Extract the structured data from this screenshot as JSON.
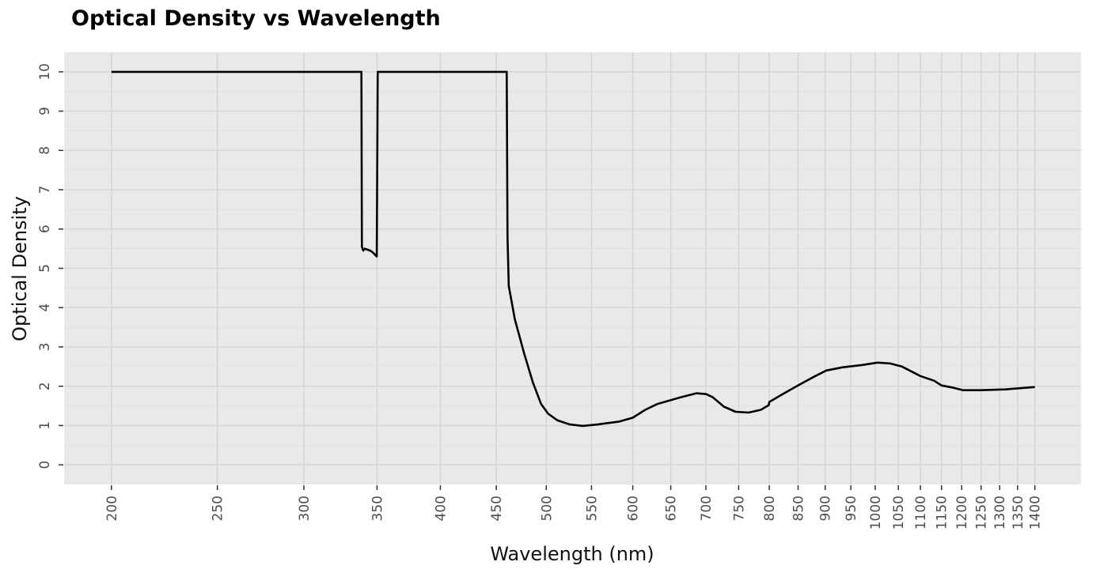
{
  "chart_data": {
    "type": "line",
    "title": "Optical Density vs Wavelength",
    "xlabel": "Wavelength (nm)",
    "ylabel": "Optical Density",
    "x_scale": "log",
    "xlim": [
      181,
      1543
    ],
    "ylim": [
      -0.5,
      10.5
    ],
    "grid": true,
    "x_ticks": [
      200,
      250,
      300,
      350,
      400,
      450,
      500,
      550,
      600,
      650,
      700,
      750,
      800,
      850,
      900,
      950,
      1000,
      1050,
      1100,
      1150,
      1200,
      1250,
      1300,
      1350,
      1400
    ],
    "y_ticks": [
      0,
      1,
      2,
      3,
      4,
      5,
      6,
      7,
      8,
      9,
      10
    ],
    "series": [
      {
        "name": "Optical Density",
        "color": "#000000",
        "x": [
          200,
          338.7,
          339,
          340,
          341,
          345,
          347,
          349.8,
          350.5,
          460,
          460.8,
          462,
          468,
          477,
          486,
          494.5,
          502,
          512,
          525,
          540,
          558,
          583,
          600,
          616,
          632,
          664,
          686,
          700,
          710,
          727,
          745,
          766,
          786,
          799,
          800,
          823,
          851,
          880,
          902,
          933,
          973,
          1005,
          1031,
          1058,
          1100,
          1132,
          1150,
          1180,
          1204,
          1250,
          1315,
          1400
        ],
        "y": [
          10,
          10,
          5.55,
          5.45,
          5.5,
          5.45,
          5.4,
          5.3,
          10,
          10,
          5.8,
          4.55,
          3.7,
          2.85,
          2.1,
          1.55,
          1.3,
          1.13,
          1.03,
          0.99,
          1.03,
          1.1,
          1.2,
          1.4,
          1.55,
          1.72,
          1.82,
          1.8,
          1.72,
          1.48,
          1.35,
          1.33,
          1.4,
          1.52,
          1.6,
          1.8,
          2.03,
          2.25,
          2.4,
          2.48,
          2.54,
          2.6,
          2.58,
          2.5,
          2.26,
          2.14,
          2.02,
          1.96,
          1.9,
          1.9,
          1.92,
          1.98
        ]
      }
    ]
  }
}
